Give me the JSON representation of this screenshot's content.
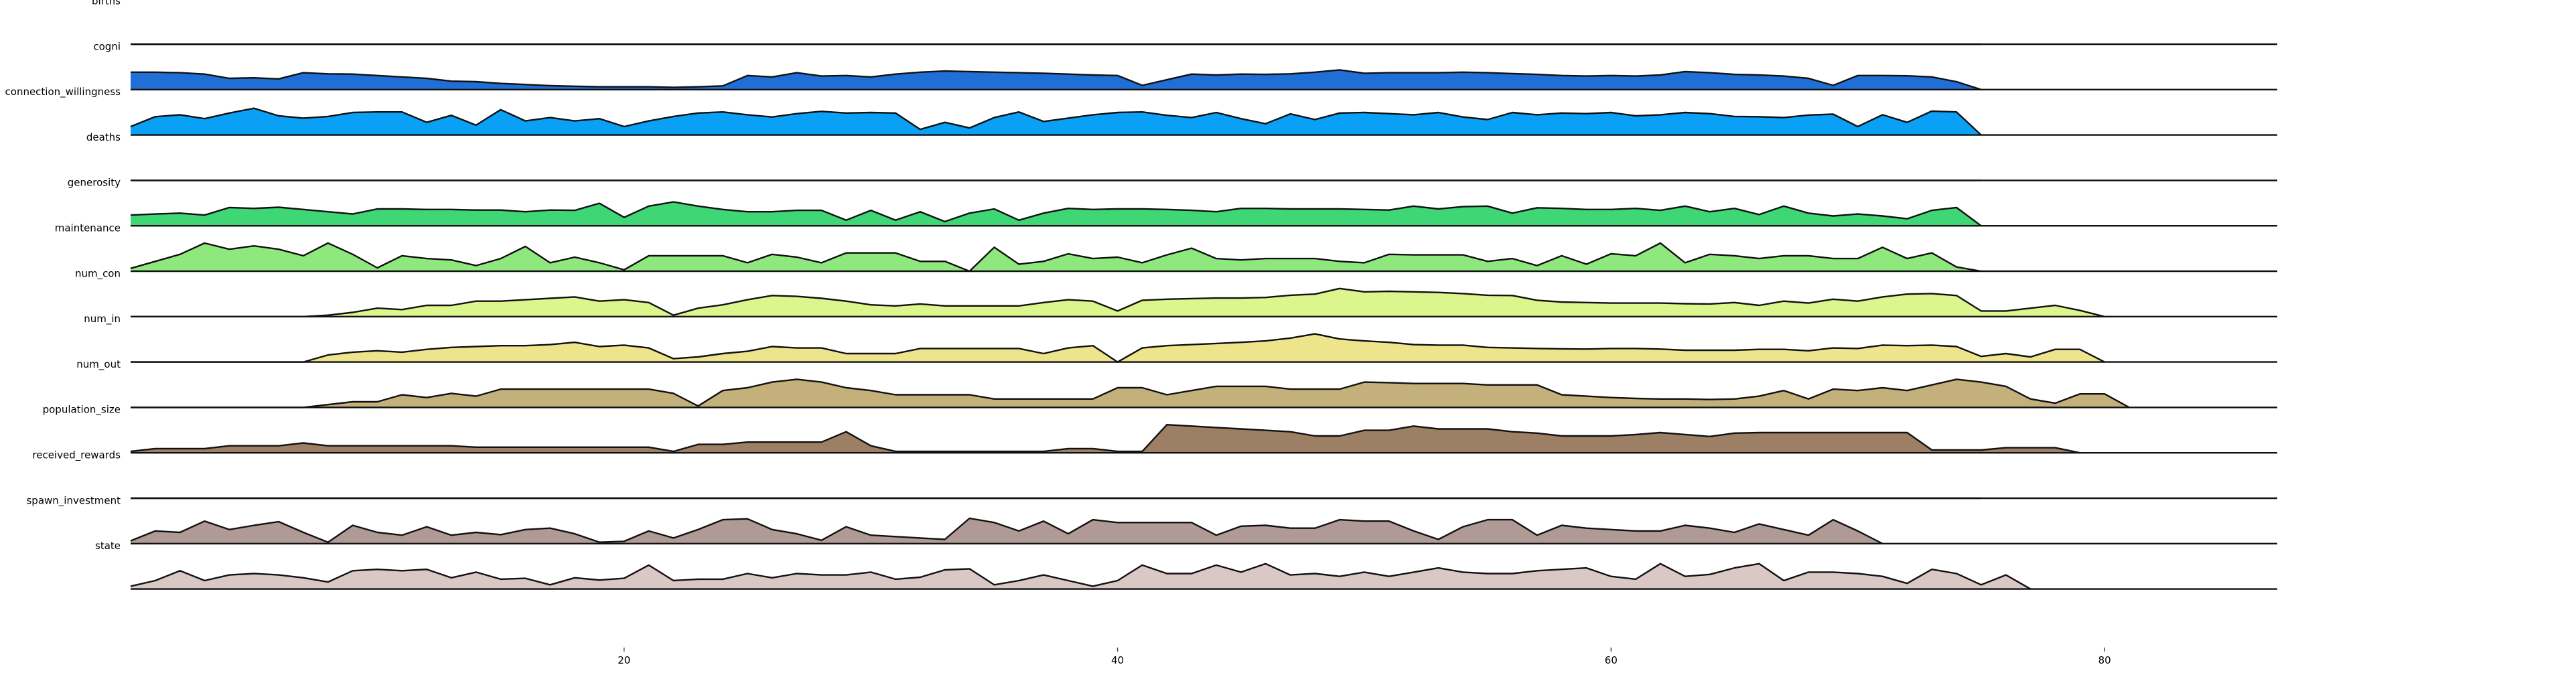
{
  "chart_data": {
    "type": "area",
    "title": "",
    "xlabel": "",
    "ylabel": "",
    "layout": "ridgeline",
    "xlim": [
      0,
      87
    ],
    "x_ticks": [
      20,
      40,
      60,
      80
    ],
    "grid": false,
    "legend": "none",
    "series": [
      {
        "name": "births",
        "color": "#1f6fd6",
        "values": [
          0,
          0,
          0,
          0,
          0,
          0,
          0,
          0,
          0,
          0,
          0,
          0,
          0,
          0,
          0,
          0,
          0,
          0,
          0,
          0,
          0,
          0,
          0,
          0,
          0,
          0,
          0,
          0,
          0,
          0,
          0,
          0,
          0,
          0,
          0,
          0,
          0,
          0,
          0,
          0,
          0,
          0,
          0,
          0,
          0,
          0,
          0,
          0,
          0,
          0,
          0,
          0,
          0,
          0,
          0,
          0,
          0,
          0,
          0,
          0,
          0,
          0,
          0,
          0,
          0,
          0,
          0,
          0,
          0,
          0,
          0,
          0,
          0,
          0,
          0,
          0
        ]
      },
      {
        "name": "cogni",
        "color": "#1f6fd6",
        "values": [
          0.62,
          0.62,
          0.6,
          0.55,
          0.4,
          0.42,
          0.38,
          0.6,
          0.56,
          0.55,
          0.5,
          0.45,
          0.4,
          0.3,
          0.28,
          0.22,
          0.18,
          0.14,
          0.12,
          0.1,
          0.1,
          0.1,
          0.08,
          0.1,
          0.13,
          0.5,
          0.45,
          0.6,
          0.48,
          0.5,
          0.45,
          0.55,
          0.62,
          0.66,
          0.64,
          0.62,
          0.6,
          0.58,
          0.55,
          0.52,
          0.5,
          0.15,
          0.35,
          0.55,
          0.52,
          0.55,
          0.54,
          0.56,
          0.62,
          0.7,
          0.58,
          0.6,
          0.6,
          0.6,
          0.62,
          0.6,
          0.57,
          0.54,
          0.5,
          0.48,
          0.5,
          0.48,
          0.52,
          0.64,
          0.6,
          0.54,
          0.52,
          0.48,
          0.4,
          0.15,
          0.5,
          0.5,
          0.49,
          0.45,
          0.28,
          0.0
        ]
      },
      {
        "name": "connection_willingness",
        "color": "#0aa0f5",
        "values": [
          0.3,
          0.65,
          0.72,
          0.58,
          0.78,
          0.95,
          0.68,
          0.6,
          0.66,
          0.8,
          0.82,
          0.82,
          0.45,
          0.7,
          0.35,
          0.9,
          0.5,
          0.62,
          0.5,
          0.58,
          0.3,
          0.5,
          0.66,
          0.78,
          0.82,
          0.72,
          0.64,
          0.76,
          0.84,
          0.78,
          0.8,
          0.78,
          0.2,
          0.45,
          0.25,
          0.62,
          0.82,
          0.48,
          0.6,
          0.72,
          0.8,
          0.82,
          0.7,
          0.62,
          0.8,
          0.58,
          0.4,
          0.75,
          0.55,
          0.78,
          0.8,
          0.76,
          0.72,
          0.8,
          0.64,
          0.55,
          0.8,
          0.72,
          0.78,
          0.76,
          0.8,
          0.68,
          0.72,
          0.8,
          0.76,
          0.66,
          0.65,
          0.62,
          0.71,
          0.74,
          0.3,
          0.72,
          0.45,
          0.85,
          0.82,
          0.0
        ]
      },
      {
        "name": "deaths",
        "color": "#0fbf85",
        "values": [
          0,
          0,
          0,
          0,
          0,
          0,
          0,
          0,
          0,
          0,
          0,
          0,
          0,
          0,
          0,
          0,
          0,
          0,
          0,
          0,
          0,
          0,
          0,
          0,
          0,
          0,
          0,
          0,
          0,
          0,
          0,
          0,
          0,
          0,
          0,
          0,
          0,
          0,
          0,
          0,
          0,
          0,
          0,
          0,
          0,
          0,
          0,
          0,
          0,
          0,
          0,
          0,
          0,
          0,
          0,
          0,
          0,
          0,
          0,
          0,
          0,
          0,
          0,
          0,
          0,
          0,
          0,
          0,
          0,
          0,
          0,
          0,
          0,
          0,
          0,
          0
        ],
        "note": ""
      },
      {
        "name": "generosity",
        "color": "#3fd675",
        "values": [
          0.38,
          0.42,
          0.45,
          0.38,
          0.65,
          0.62,
          0.66,
          0.58,
          0.5,
          0.42,
          0.6,
          0.6,
          0.58,
          0.58,
          0.56,
          0.56,
          0.5,
          0.56,
          0.55,
          0.8,
          0.3,
          0.7,
          0.85,
          0.7,
          0.58,
          0.5,
          0.5,
          0.55,
          0.55,
          0.2,
          0.55,
          0.2,
          0.5,
          0.15,
          0.45,
          0.6,
          0.2,
          0.45,
          0.62,
          0.58,
          0.6,
          0.6,
          0.58,
          0.55,
          0.5,
          0.62,
          0.62,
          0.6,
          0.6,
          0.6,
          0.58,
          0.56,
          0.7,
          0.6,
          0.68,
          0.7,
          0.45,
          0.64,
          0.62,
          0.58,
          0.58,
          0.62,
          0.55,
          0.7,
          0.5,
          0.62,
          0.4,
          0.7,
          0.45,
          0.35,
          0.42,
          0.35,
          0.25,
          0.55,
          0.65,
          0.0
        ]
      },
      {
        "name": "maintenance",
        "color": "#8ee87e",
        "values": [
          0.1,
          0.35,
          0.6,
          1.0,
          0.78,
          0.9,
          0.78,
          0.55,
          1.0,
          0.6,
          0.12,
          0.55,
          0.45,
          0.4,
          0.2,
          0.45,
          0.88,
          0.3,
          0.5,
          0.3,
          0.05,
          0.55,
          0.55,
          0.55,
          0.55,
          0.3,
          0.6,
          0.5,
          0.3,
          0.65,
          0.65,
          0.65,
          0.35,
          0.35,
          0.0,
          0.85,
          0.25,
          0.35,
          0.62,
          0.45,
          0.5,
          0.3,
          0.58,
          0.82,
          0.45,
          0.4,
          0.45,
          0.45,
          0.45,
          0.35,
          0.3,
          0.6,
          0.58,
          0.58,
          0.58,
          0.35,
          0.45,
          0.2,
          0.55,
          0.25,
          0.62,
          0.55,
          1.0,
          0.3,
          0.6,
          0.55,
          0.45,
          0.55,
          0.55,
          0.45,
          0.45,
          0.85,
          0.45,
          0.65,
          0.15,
          0.0
        ]
      },
      {
        "name": "num_con",
        "color": "#dcf58c",
        "values": [
          0,
          0,
          0,
          0,
          0,
          0,
          0,
          0,
          0.05,
          0.15,
          0.3,
          0.25,
          0.4,
          0.4,
          0.55,
          0.55,
          0.6,
          0.65,
          0.7,
          0.55,
          0.6,
          0.5,
          0.05,
          0.3,
          0.42,
          0.6,
          0.75,
          0.72,
          0.65,
          0.55,
          0.42,
          0.38,
          0.45,
          0.38,
          0.38,
          0.38,
          0.38,
          0.5,
          0.6,
          0.55,
          0.2,
          0.58,
          0.62,
          0.64,
          0.66,
          0.66,
          0.68,
          0.76,
          0.8,
          1.0,
          0.88,
          0.9,
          0.88,
          0.86,
          0.82,
          0.76,
          0.75,
          0.58,
          0.52,
          0.5,
          0.48,
          0.48,
          0.48,
          0.46,
          0.45,
          0.5,
          0.4,
          0.55,
          0.48,
          0.62,
          0.55,
          0.7,
          0.8,
          0.82,
          0.75,
          0.2,
          0.2,
          0.3,
          0.4,
          0.22,
          0.0
        ]
      },
      {
        "name": "num_in",
        "color": "#ede48c",
        "values": [
          0,
          0,
          0,
          0,
          0,
          0,
          0,
          0,
          0.25,
          0.35,
          0.4,
          0.35,
          0.45,
          0.52,
          0.55,
          0.58,
          0.58,
          0.62,
          0.7,
          0.55,
          0.6,
          0.5,
          0.12,
          0.18,
          0.3,
          0.38,
          0.55,
          0.5,
          0.5,
          0.3,
          0.3,
          0.3,
          0.48,
          0.48,
          0.48,
          0.48,
          0.48,
          0.3,
          0.5,
          0.58,
          0.0,
          0.5,
          0.58,
          0.62,
          0.66,
          0.7,
          0.75,
          0.85,
          1.0,
          0.82,
          0.75,
          0.7,
          0.62,
          0.6,
          0.6,
          0.52,
          0.5,
          0.48,
          0.47,
          0.46,
          0.48,
          0.48,
          0.46,
          0.42,
          0.42,
          0.42,
          0.45,
          0.45,
          0.4,
          0.5,
          0.48,
          0.6,
          0.58,
          0.6,
          0.55,
          0.2,
          0.3,
          0.18,
          0.45,
          0.45,
          0.0
        ]
      },
      {
        "name": "num_out",
        "color": "#c4b07a",
        "values": [
          0,
          0,
          0,
          0,
          0,
          0,
          0,
          0,
          0.1,
          0.2,
          0.2,
          0.45,
          0.35,
          0.5,
          0.4,
          0.65,
          0.65,
          0.65,
          0.65,
          0.65,
          0.65,
          0.65,
          0.5,
          0.05,
          0.6,
          0.7,
          0.9,
          1.0,
          0.9,
          0.7,
          0.6,
          0.45,
          0.45,
          0.45,
          0.45,
          0.3,
          0.3,
          0.3,
          0.3,
          0.3,
          0.7,
          0.7,
          0.45,
          0.6,
          0.75,
          0.75,
          0.75,
          0.65,
          0.65,
          0.65,
          0.9,
          0.88,
          0.85,
          0.85,
          0.85,
          0.8,
          0.8,
          0.8,
          0.45,
          0.4,
          0.35,
          0.32,
          0.3,
          0.3,
          0.28,
          0.3,
          0.4,
          0.6,
          0.3,
          0.65,
          0.6,
          0.7,
          0.6,
          0.8,
          1.0,
          0.9,
          0.75,
          0.3,
          0.15,
          0.48,
          0.48,
          0.0
        ]
      },
      {
        "name": "population_size",
        "color": "#9c7f64",
        "values": [
          0.05,
          0.15,
          0.15,
          0.15,
          0.25,
          0.25,
          0.25,
          0.35,
          0.25,
          0.25,
          0.25,
          0.25,
          0.25,
          0.25,
          0.2,
          0.2,
          0.2,
          0.2,
          0.2,
          0.2,
          0.2,
          0.2,
          0.05,
          0.3,
          0.3,
          0.38,
          0.38,
          0.38,
          0.38,
          0.75,
          0.25,
          0.05,
          0.05,
          0.05,
          0.05,
          0.05,
          0.05,
          0.05,
          0.15,
          0.15,
          0.05,
          0.05,
          1.0,
          0.95,
          0.9,
          0.85,
          0.8,
          0.75,
          0.6,
          0.6,
          0.8,
          0.8,
          0.95,
          0.85,
          0.85,
          0.85,
          0.75,
          0.7,
          0.6,
          0.6,
          0.6,
          0.65,
          0.72,
          0.65,
          0.58,
          0.7,
          0.72,
          0.72,
          0.72,
          0.72,
          0.72,
          0.72,
          0.72,
          0.1,
          0.1,
          0.1,
          0.18,
          0.18,
          0.18,
          0.0
        ]
      },
      {
        "name": "received_rewards",
        "color": "#9c7f64",
        "values": [
          0,
          0,
          0,
          0,
          0,
          0,
          0,
          0,
          0,
          0,
          0,
          0,
          0,
          0,
          0,
          0,
          0,
          0,
          0,
          0,
          0,
          0,
          0,
          0,
          0,
          0,
          0,
          0,
          0,
          0,
          0,
          0,
          0,
          0,
          0,
          0,
          0,
          0,
          0,
          0,
          0,
          0,
          0,
          0,
          0,
          0,
          0,
          0,
          0,
          0,
          0,
          0,
          0,
          0,
          0,
          0,
          0,
          0,
          0,
          0,
          0,
          0,
          0,
          0,
          0,
          0,
          0,
          0,
          0,
          0,
          0,
          0,
          0,
          0,
          0,
          0
        ]
      },
      {
        "name": "spawn_investment",
        "color": "#b09a95",
        "values": [
          0.1,
          0.45,
          0.4,
          0.8,
          0.5,
          0.65,
          0.78,
          0.4,
          0.05,
          0.65,
          0.4,
          0.3,
          0.6,
          0.3,
          0.4,
          0.32,
          0.5,
          0.55,
          0.35,
          0.05,
          0.08,
          0.45,
          0.2,
          0.5,
          0.85,
          0.88,
          0.5,
          0.35,
          0.12,
          0.6,
          0.3,
          0.25,
          0.2,
          0.15,
          0.9,
          0.75,
          0.45,
          0.8,
          0.35,
          0.85,
          0.75,
          0.75,
          0.75,
          0.75,
          0.3,
          0.62,
          0.65,
          0.55,
          0.55,
          0.85,
          0.8,
          0.8,
          0.45,
          0.15,
          0.6,
          0.85,
          0.85,
          0.3,
          0.65,
          0.55,
          0.5,
          0.45,
          0.45,
          0.65,
          0.55,
          0.4,
          0.7,
          0.5,
          0.3,
          0.85,
          0.45,
          0.0
        ]
      },
      {
        "name": "state",
        "color": "#d9c8c5",
        "values": [
          0.1,
          0.3,
          0.65,
          0.3,
          0.5,
          0.55,
          0.5,
          0.4,
          0.25,
          0.65,
          0.7,
          0.65,
          0.7,
          0.4,
          0.6,
          0.35,
          0.38,
          0.15,
          0.4,
          0.32,
          0.38,
          0.85,
          0.3,
          0.35,
          0.35,
          0.55,
          0.4,
          0.55,
          0.5,
          0.5,
          0.6,
          0.35,
          0.42,
          0.68,
          0.72,
          0.15,
          0.3,
          0.5,
          0.3,
          0.1,
          0.3,
          0.85,
          0.55,
          0.55,
          0.85,
          0.6,
          0.9,
          0.5,
          0.55,
          0.45,
          0.6,
          0.45,
          0.6,
          0.75,
          0.6,
          0.55,
          0.55,
          0.65,
          0.7,
          0.75,
          0.45,
          0.35,
          0.9,
          0.45,
          0.52,
          0.75,
          0.9,
          0.3,
          0.6,
          0.6,
          0.55,
          0.45,
          0.2,
          0.7,
          0.55,
          0.15,
          0.5,
          0.0
        ]
      }
    ]
  }
}
